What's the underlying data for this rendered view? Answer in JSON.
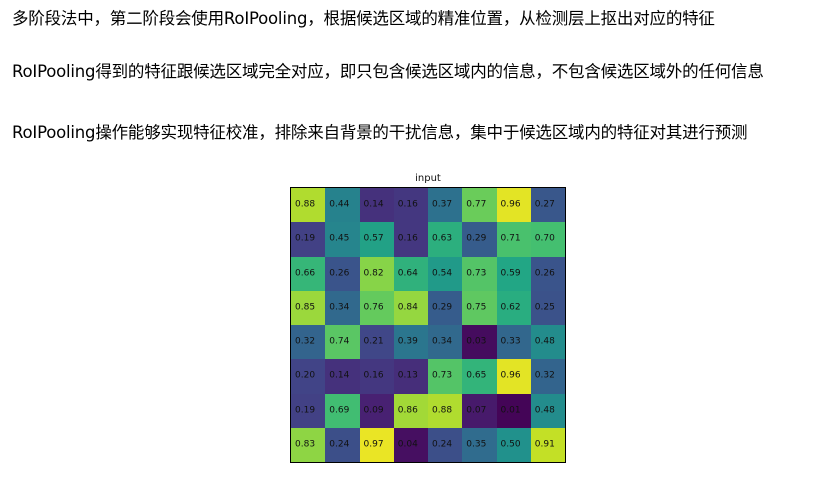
{
  "text_lines": [
    "多阶段法中，第二阶段会使用RoIPooling，根据候选区域的精准位置，从检测层上抠出对应的特征",
    "RoIPooling得到的特征跟候选区域完全对应，即只包含候选区域内的信息，不包含候选区域外的任何信息",
    "RoIPooling操作能够实现特征校准，排除来自背景的干扰信息，集中于候选区域内的特征对其进行预测"
  ],
  "chart_data": {
    "type": "heatmap",
    "title": "input",
    "colormap": "viridis",
    "value_range": [
      0,
      1
    ],
    "rows": [
      [
        "0.88",
        "0.44",
        "0.14",
        "0.16",
        "0.37",
        "0.77",
        "0.96",
        "0.27"
      ],
      [
        "0.19",
        "0.45",
        "0.57",
        "0.16",
        "0.63",
        "0.29",
        "0.71",
        "0.70"
      ],
      [
        "0.66",
        "0.26",
        "0.82",
        "0.64",
        "0.54",
        "0.73",
        "0.59",
        "0.26"
      ],
      [
        "0.85",
        "0.34",
        "0.76",
        "0.84",
        "0.29",
        "0.75",
        "0.62",
        "0.25"
      ],
      [
        "0.32",
        "0.74",
        "0.21",
        "0.39",
        "0.34",
        "0.03",
        "0.33",
        "0.48"
      ],
      [
        "0.20",
        "0.14",
        "0.16",
        "0.13",
        "0.73",
        "0.65",
        "0.96",
        "0.32"
      ],
      [
        "0.19",
        "0.69",
        "0.09",
        "0.86",
        "0.88",
        "0.07",
        "0.01",
        "0.48"
      ],
      [
        "0.83",
        "0.24",
        "0.97",
        "0.04",
        "0.24",
        "0.35",
        "0.50",
        "0.91"
      ]
    ]
  }
}
